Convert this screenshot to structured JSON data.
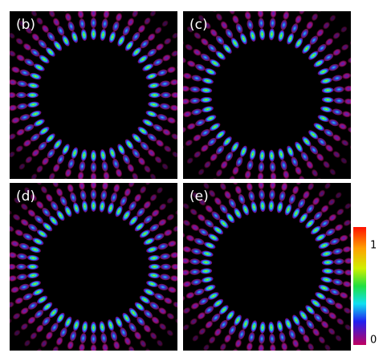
{
  "panels": [
    {
      "label": "(b)"
    },
    {
      "label": "(c)"
    },
    {
      "label": "(d)"
    },
    {
      "label": "(e)"
    }
  ],
  "colorbar": {
    "max_label": "1",
    "min_label": "0"
  }
}
